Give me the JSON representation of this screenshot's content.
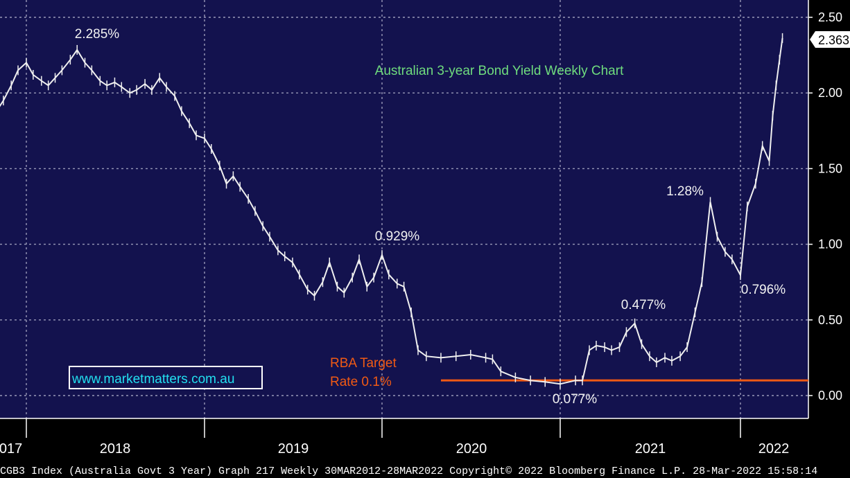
{
  "chart_data": {
    "type": "line",
    "title": "Australian 3-year Bond Yield Weekly Chart",
    "ylim": [
      0.0,
      2.5
    ],
    "yticks": [
      "2.50",
      "2.00",
      "1.50",
      "1.00",
      "0.50",
      "0.00"
    ],
    "x_labels": [
      "2017",
      "2018",
      "2019",
      "2020",
      "2021",
      "2022"
    ],
    "x_range": [
      "2017-10",
      "2022-03"
    ],
    "series": [
      {
        "points": [
          [
            "2017-10-01",
            1.93
          ],
          [
            "2017-10-15",
            1.9
          ],
          [
            "2017-11-01",
            1.88
          ],
          [
            "2017-11-15",
            1.95
          ],
          [
            "2017-12-01",
            2.05
          ],
          [
            "2017-12-15",
            2.15
          ],
          [
            "2018-01-01",
            2.2
          ],
          [
            "2018-01-15",
            2.12
          ],
          [
            "2018-02-01",
            2.08
          ],
          [
            "2018-02-15",
            2.05
          ],
          [
            "2018-03-01",
            2.1
          ],
          [
            "2018-03-15",
            2.15
          ],
          [
            "2018-04-01",
            2.22
          ],
          [
            "2018-04-15",
            2.285
          ],
          [
            "2018-05-01",
            2.2
          ],
          [
            "2018-05-15",
            2.15
          ],
          [
            "2018-06-01",
            2.08
          ],
          [
            "2018-06-15",
            2.05
          ],
          [
            "2018-07-01",
            2.07
          ],
          [
            "2018-07-15",
            2.04
          ],
          [
            "2018-08-01",
            2.0
          ],
          [
            "2018-08-15",
            2.02
          ],
          [
            "2018-09-01",
            2.06
          ],
          [
            "2018-09-15",
            2.02
          ],
          [
            "2018-10-01",
            2.1
          ],
          [
            "2018-10-15",
            2.04
          ],
          [
            "2018-11-01",
            1.98
          ],
          [
            "2018-11-15",
            1.88
          ],
          [
            "2018-12-01",
            1.8
          ],
          [
            "2018-12-15",
            1.72
          ],
          [
            "2019-01-01",
            1.7
          ],
          [
            "2019-01-15",
            1.63
          ],
          [
            "2019-02-01",
            1.52
          ],
          [
            "2019-02-15",
            1.4
          ],
          [
            "2019-03-01",
            1.45
          ],
          [
            "2019-03-15",
            1.38
          ],
          [
            "2019-04-01",
            1.3
          ],
          [
            "2019-04-15",
            1.22
          ],
          [
            "2019-05-01",
            1.12
          ],
          [
            "2019-05-15",
            1.05
          ],
          [
            "2019-06-01",
            0.96
          ],
          [
            "2019-06-15",
            0.92
          ],
          [
            "2019-07-01",
            0.88
          ],
          [
            "2019-07-15",
            0.8
          ],
          [
            "2019-08-01",
            0.7
          ],
          [
            "2019-08-15",
            0.66
          ],
          [
            "2019-09-01",
            0.75
          ],
          [
            "2019-09-15",
            0.88
          ],
          [
            "2019-10-01",
            0.72
          ],
          [
            "2019-10-15",
            0.68
          ],
          [
            "2019-11-01",
            0.78
          ],
          [
            "2019-11-15",
            0.9
          ],
          [
            "2019-12-01",
            0.72
          ],
          [
            "2019-12-15",
            0.78
          ],
          [
            "2020-01-01",
            0.929
          ],
          [
            "2020-01-15",
            0.8
          ],
          [
            "2020-02-01",
            0.74
          ],
          [
            "2020-02-15",
            0.72
          ],
          [
            "2020-03-01",
            0.55
          ],
          [
            "2020-03-15",
            0.3
          ],
          [
            "2020-04-01",
            0.26
          ],
          [
            "2020-05-01",
            0.25
          ],
          [
            "2020-06-01",
            0.26
          ],
          [
            "2020-07-01",
            0.27
          ],
          [
            "2020-08-01",
            0.25
          ],
          [
            "2020-08-15",
            0.24
          ],
          [
            "2020-09-01",
            0.16
          ],
          [
            "2020-10-01",
            0.12
          ],
          [
            "2020-11-01",
            0.1
          ],
          [
            "2020-12-01",
            0.09
          ],
          [
            "2021-01-01",
            0.077
          ],
          [
            "2021-02-01",
            0.1
          ],
          [
            "2021-02-15",
            0.1
          ],
          [
            "2021-03-01",
            0.3
          ],
          [
            "2021-03-15",
            0.33
          ],
          [
            "2021-04-01",
            0.32
          ],
          [
            "2021-04-15",
            0.3
          ],
          [
            "2021-05-01",
            0.32
          ],
          [
            "2021-05-15",
            0.42
          ],
          [
            "2021-06-01",
            0.477
          ],
          [
            "2021-06-15",
            0.34
          ],
          [
            "2021-07-01",
            0.26
          ],
          [
            "2021-07-15",
            0.22
          ],
          [
            "2021-08-01",
            0.25
          ],
          [
            "2021-08-15",
            0.23
          ],
          [
            "2021-09-01",
            0.26
          ],
          [
            "2021-09-15",
            0.32
          ],
          [
            "2021-10-01",
            0.55
          ],
          [
            "2021-10-15",
            0.75
          ],
          [
            "2021-11-01",
            1.28
          ],
          [
            "2021-11-15",
            1.05
          ],
          [
            "2021-12-01",
            0.95
          ],
          [
            "2021-12-15",
            0.9
          ],
          [
            "2022-01-01",
            0.796
          ],
          [
            "2022-01-15",
            1.25
          ],
          [
            "2022-02-01",
            1.4
          ],
          [
            "2022-02-15",
            1.65
          ],
          [
            "2022-03-01",
            1.55
          ],
          [
            "2022-03-08",
            1.85
          ],
          [
            "2022-03-15",
            2.05
          ],
          [
            "2022-03-22",
            2.22
          ],
          [
            "2022-03-28",
            2.363
          ]
        ]
      }
    ],
    "last_value": "2.363",
    "reference_line": {
      "value": 0.1,
      "label_line1": "RBA Target",
      "label_line2": "Rate 0.1%"
    },
    "annotations": [
      {
        "text": "2.285%",
        "date": "2018-04-15",
        "value": 2.285
      },
      {
        "text": "0.929%",
        "date": "2020-01-01",
        "value": 0.929
      },
      {
        "text": "0.077%",
        "date": "2021-01-01",
        "value": 0.077
      },
      {
        "text": "0.477%",
        "date": "2021-06-01",
        "value": 0.477
      },
      {
        "text": "1.28%",
        "date": "2021-11-01",
        "value": 1.28
      },
      {
        "text": "0.796%",
        "date": "2022-01-01",
        "value": 0.796
      }
    ],
    "grid": true
  },
  "website": "www.marketmatters.com.au",
  "footer": "CGB3 Index (Australia Govt 3 Year) Graph 217  Weekly 30MAR2012-28MAR2022 Copyright© 2022 Bloomberg Finance L.P. 28-Mar-2022 15:58:14",
  "colors": {
    "background": "#13124e",
    "line": "#f0f0f0",
    "title": "#6fdc7e",
    "reference": "#f05a14",
    "website": "#22e0f0"
  }
}
